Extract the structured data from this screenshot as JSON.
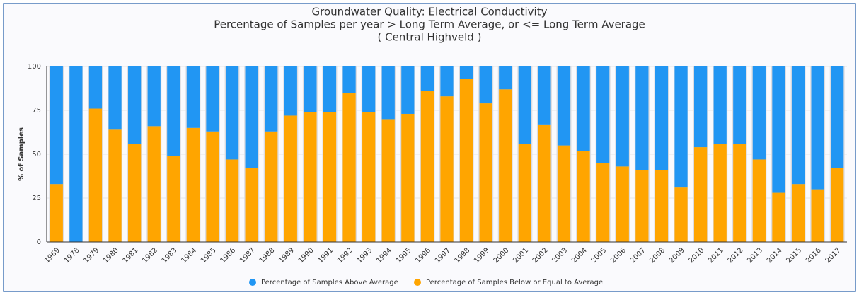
{
  "chart_data": {
    "type": "bar",
    "stacked": true,
    "title": "Groundwater Quality: Electrical Conductivity",
    "subtitle": "Percentage of Samples per year > Long Term Average, or <= Long Term Average",
    "region": "( Central Highveld )",
    "ylabel": "% of Samples",
    "categories": [
      "1969",
      "1978",
      "1979",
      "1980",
      "1981",
      "1982",
      "1983",
      "1984",
      "1985",
      "1986",
      "1987",
      "1988",
      "1989",
      "1990",
      "1991",
      "1992",
      "1993",
      "1994",
      "1995",
      "1996",
      "1997",
      "1998",
      "1999",
      "2000",
      "2001",
      "2002",
      "2003",
      "2004",
      "2005",
      "2006",
      "2007",
      "2008",
      "2009",
      "2010",
      "2011",
      "2012",
      "2013",
      "2014",
      "2015",
      "2016",
      "2017"
    ],
    "series": [
      {
        "name": "Percentage of Samples Above Average",
        "color": "#2196f3",
        "values": [
          67,
          100,
          24,
          36,
          44,
          34,
          51,
          35,
          37,
          53,
          58,
          37,
          28,
          26,
          26,
          15,
          26,
          30,
          27,
          14,
          17,
          7,
          21,
          13,
          44,
          33,
          45,
          48,
          55,
          57,
          59,
          59,
          69,
          46,
          44,
          44,
          53,
          72,
          67,
          70,
          58
        ]
      },
      {
        "name": "Percentage of Samples Below or Equal to Average",
        "color": "#ffa500",
        "values": [
          33,
          0,
          76,
          64,
          56,
          66,
          49,
          65,
          63,
          47,
          42,
          63,
          72,
          74,
          74,
          85,
          74,
          70,
          73,
          86,
          83,
          93,
          79,
          87,
          56,
          67,
          55,
          52,
          45,
          43,
          41,
          41,
          31,
          54,
          56,
          56,
          47,
          28,
          33,
          30,
          42
        ]
      }
    ],
    "ylim": [
      0,
      100
    ],
    "yticks": [
      0,
      25,
      50,
      75,
      100
    ],
    "grid": true
  }
}
